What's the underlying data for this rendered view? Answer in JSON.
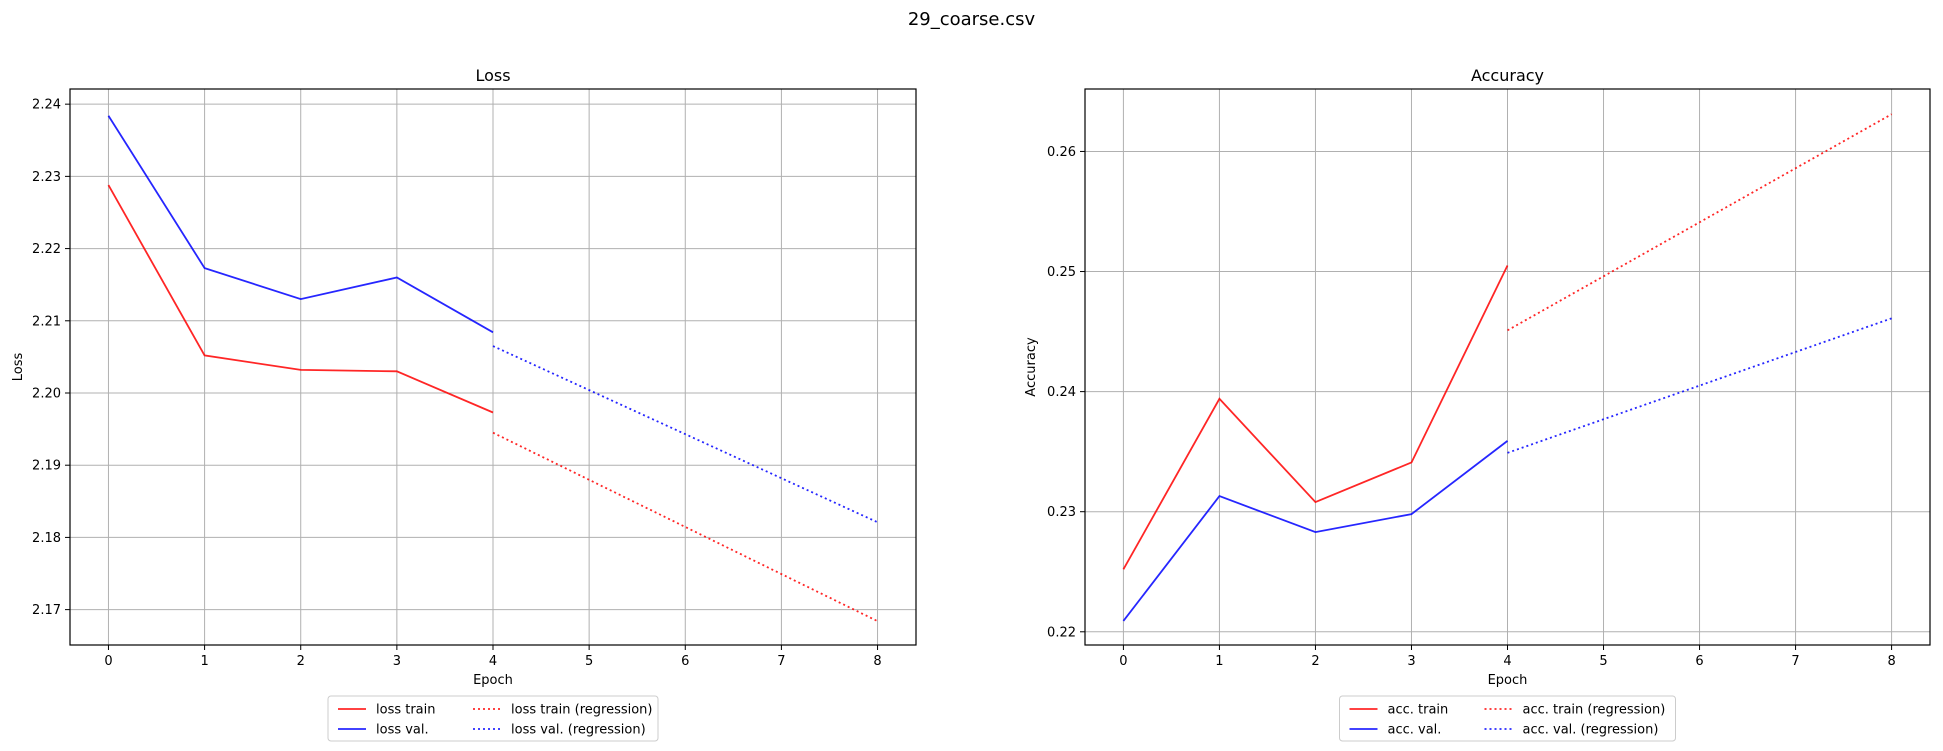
{
  "figure": {
    "suptitle": "29_coarse.csv"
  },
  "chart_data": [
    {
      "type": "line",
      "title": "Loss",
      "xlabel": "Epoch",
      "ylabel": "Loss",
      "xlim": [
        -0.4,
        8.4
      ],
      "ylim": [
        2.1651,
        2.2421
      ],
      "xticks": [
        0,
        1,
        2,
        3,
        4,
        5,
        6,
        7,
        8
      ],
      "yticks": [
        2.17,
        2.18,
        2.19,
        2.2,
        2.21,
        2.22,
        2.23,
        2.24
      ],
      "ytick_labels": [
        "2.17",
        "2.18",
        "2.19",
        "2.20",
        "2.21",
        "2.22",
        "2.23",
        "2.24"
      ],
      "grid": true,
      "legend_position": "bottom-center, below axes",
      "series": [
        {
          "name": "loss train",
          "color": "#ff0000",
          "style": "solid",
          "x": [
            0,
            1,
            2,
            3,
            4
          ],
          "y": [
            2.2288,
            2.2052,
            2.2032,
            2.203,
            2.1973
          ]
        },
        {
          "name": "loss val.",
          "color": "#0000ff",
          "style": "solid",
          "x": [
            0,
            1,
            2,
            3,
            4
          ],
          "y": [
            2.2384,
            2.2173,
            2.213,
            2.216,
            2.2084
          ]
        },
        {
          "name": "loss train (regression)",
          "color": "#ff0000",
          "style": "dotted",
          "x": [
            4,
            8
          ],
          "y": [
            2.1945,
            2.1684
          ]
        },
        {
          "name": "loss val. (regression)",
          "color": "#0000ff",
          "style": "dotted",
          "x": [
            4,
            8
          ],
          "y": [
            2.2065,
            2.1821
          ]
        }
      ]
    },
    {
      "type": "line",
      "title": "Accuracy",
      "xlabel": "Epoch",
      "ylabel": "Accuracy",
      "xlim": [
        -0.4,
        8.4
      ],
      "ylim": [
        0.2189,
        0.2652
      ],
      "xticks": [
        0,
        1,
        2,
        3,
        4,
        5,
        6,
        7,
        8
      ],
      "yticks": [
        0.22,
        0.23,
        0.24,
        0.25,
        0.26
      ],
      "ytick_labels": [
        "0.22",
        "0.23",
        "0.24",
        "0.25",
        "0.26"
      ],
      "grid": true,
      "legend_position": "bottom-center, below axes",
      "series": [
        {
          "name": "acc. train",
          "color": "#ff0000",
          "style": "solid",
          "x": [
            0,
            1,
            2,
            3,
            4
          ],
          "y": [
            0.2252,
            0.2394,
            0.2308,
            0.2341,
            0.2505
          ]
        },
        {
          "name": "acc. val.",
          "color": "#0000ff",
          "style": "solid",
          "x": [
            0,
            1,
            2,
            3,
            4
          ],
          "y": [
            0.2209,
            0.2313,
            0.2283,
            0.2298,
            0.2359
          ]
        },
        {
          "name": "acc. train (regression)",
          "color": "#ff0000",
          "style": "dotted",
          "x": [
            4,
            8
          ],
          "y": [
            0.2451,
            0.2631
          ]
        },
        {
          "name": "acc. val. (regression)",
          "color": "#0000ff",
          "style": "dotted",
          "x": [
            4,
            8
          ],
          "y": [
            0.2349,
            0.2461
          ]
        }
      ]
    }
  ]
}
